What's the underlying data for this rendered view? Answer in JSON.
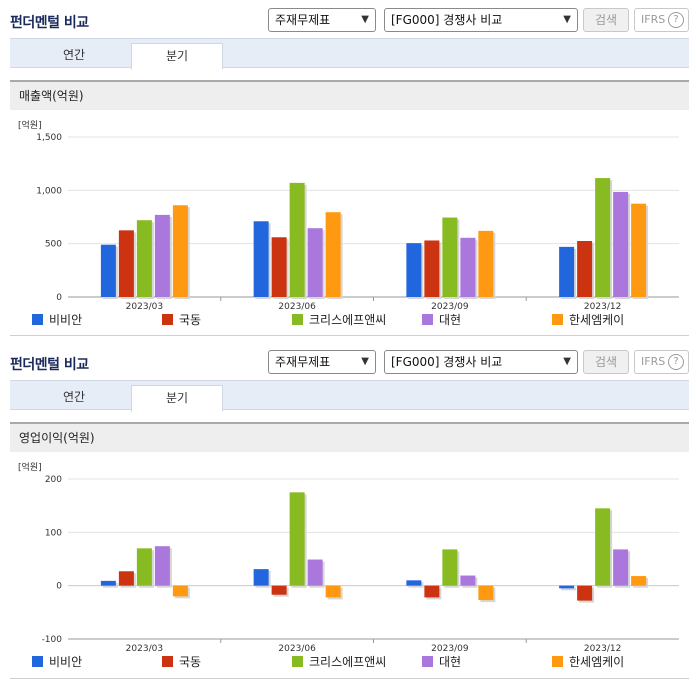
{
  "sections": [
    {
      "header": {
        "title": "펀더멘털 비교",
        "select_type": "주재무제표",
        "select_peer": "[FG000] 경쟁사 비교",
        "search_label": "검색",
        "ifrs_label": "IFRS",
        "ifrs_help": "?"
      },
      "tabs": {
        "annual": "연간",
        "quarterly": "분기"
      },
      "metric_title": "매출액(억원)",
      "unit_label": "[억원]"
    },
    {
      "header": {
        "title": "펀더멘털 비교",
        "select_type": "주재무제표",
        "select_peer": "[FG000] 경쟁사 비교",
        "search_label": "검색",
        "ifrs_label": "IFRS",
        "ifrs_help": "?"
      },
      "tabs": {
        "annual": "연간",
        "quarterly": "분기"
      },
      "metric_title": "영업이익(억원)",
      "unit_label": "[억원]"
    }
  ],
  "colors": [
    "#2266dd",
    "#cc3311",
    "#88bb22",
    "#aa77dd",
    "#ff9911"
  ],
  "chart_data": [
    {
      "type": "bar",
      "categories": [
        "2023/03",
        "2023/06",
        "2023/09",
        "2023/12"
      ],
      "ylim": [
        0,
        1500
      ],
      "yticks": [
        0,
        500,
        1000,
        1500
      ],
      "ytick_labels": [
        "0",
        "500",
        "1,000",
        "1,500"
      ],
      "series": [
        {
          "name": "비비안",
          "values": [
            490,
            710,
            505,
            470
          ]
        },
        {
          "name": "국동",
          "values": [
            625,
            560,
            530,
            525
          ]
        },
        {
          "name": "크리스에프앤씨",
          "values": [
            720,
            1070,
            745,
            1115
          ]
        },
        {
          "name": "대현",
          "values": [
            770,
            645,
            555,
            985
          ]
        },
        {
          "name": "한세엠케이",
          "values": [
            860,
            795,
            620,
            875
          ]
        }
      ]
    },
    {
      "type": "bar",
      "categories": [
        "2023/03",
        "2023/06",
        "2023/09",
        "2023/12"
      ],
      "ylim": [
        -100,
        200
      ],
      "yticks": [
        -100,
        0,
        100,
        200
      ],
      "ytick_labels": [
        "-100",
        "0",
        "100",
        "200"
      ],
      "series": [
        {
          "name": "비비안",
          "values": [
            9,
            31,
            10,
            -5
          ]
        },
        {
          "name": "국동",
          "values": [
            27,
            -17,
            -22,
            -28
          ]
        },
        {
          "name": "크리스에프앤씨",
          "values": [
            70,
            175,
            68,
            145
          ]
        },
        {
          "name": "대현",
          "values": [
            74,
            49,
            19,
            68
          ]
        },
        {
          "name": "한세엠케이",
          "values": [
            -20,
            -22,
            -27,
            18
          ]
        }
      ]
    }
  ]
}
